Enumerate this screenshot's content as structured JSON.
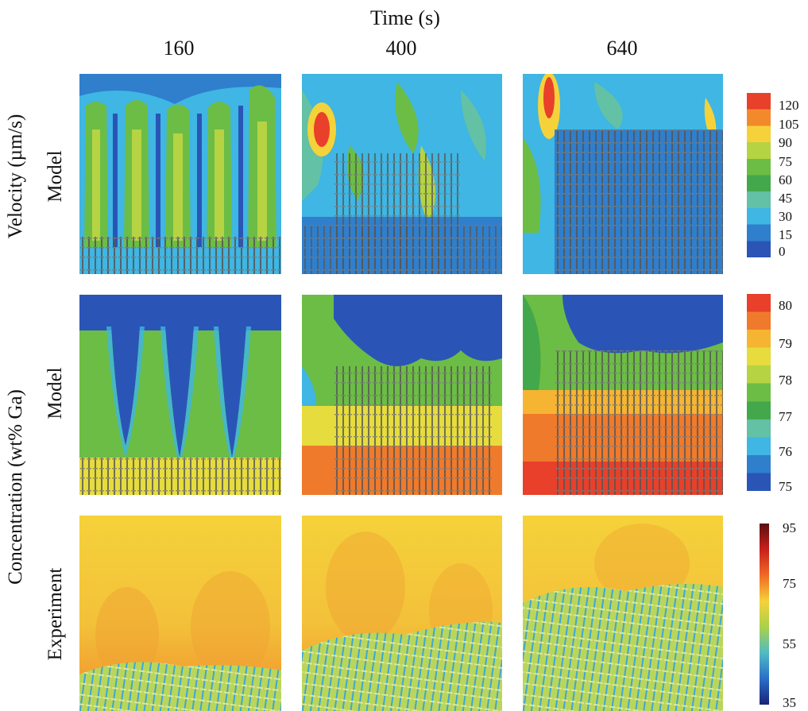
{
  "figure": {
    "column_header": "Time (s)",
    "times": [
      "160",
      "400",
      "640"
    ],
    "row_groups": [
      {
        "label": "Velocity (µm/s)",
        "rows": [
          "Model"
        ]
      },
      {
        "label": "Concentration (wt% Ga)",
        "rows": [
          "Model",
          "Experiment"
        ]
      }
    ],
    "rows": [
      {
        "label": "Model",
        "colorbar_ticks": [
          "120",
          "105",
          "90",
          "75",
          "60",
          "45",
          "30",
          "15",
          "0"
        ],
        "colorbar_colors": [
          "#e8402a",
          "#f28a2c",
          "#f5d23a",
          "#b6d343",
          "#6cbd45",
          "#43a84c",
          "#63c1a5",
          "#3fb6e3",
          "#2f7fcd",
          "#2a55b6"
        ]
      },
      {
        "label": "Model",
        "colorbar_ticks": [
          "80",
          "79",
          "78",
          "77",
          "76",
          "75"
        ],
        "colorbar_colors": [
          "#e8402a",
          "#f07a2b",
          "#f5b432",
          "#e6dc3d",
          "#b6d343",
          "#6cbd45",
          "#43a84c",
          "#63c1a5",
          "#3fb6e3",
          "#2f7fcd",
          "#2a55b6"
        ]
      },
      {
        "label": "Experiment",
        "colorbar_ticks": [
          "95",
          "75",
          "55",
          "35"
        ],
        "colorbar_colors": [
          "#5a0f10",
          "#c8201c",
          "#ef6a24",
          "#f4d23a",
          "#aad14a",
          "#4fbcc4",
          "#2a6ec8",
          "#1a2377"
        ]
      }
    ]
  }
}
